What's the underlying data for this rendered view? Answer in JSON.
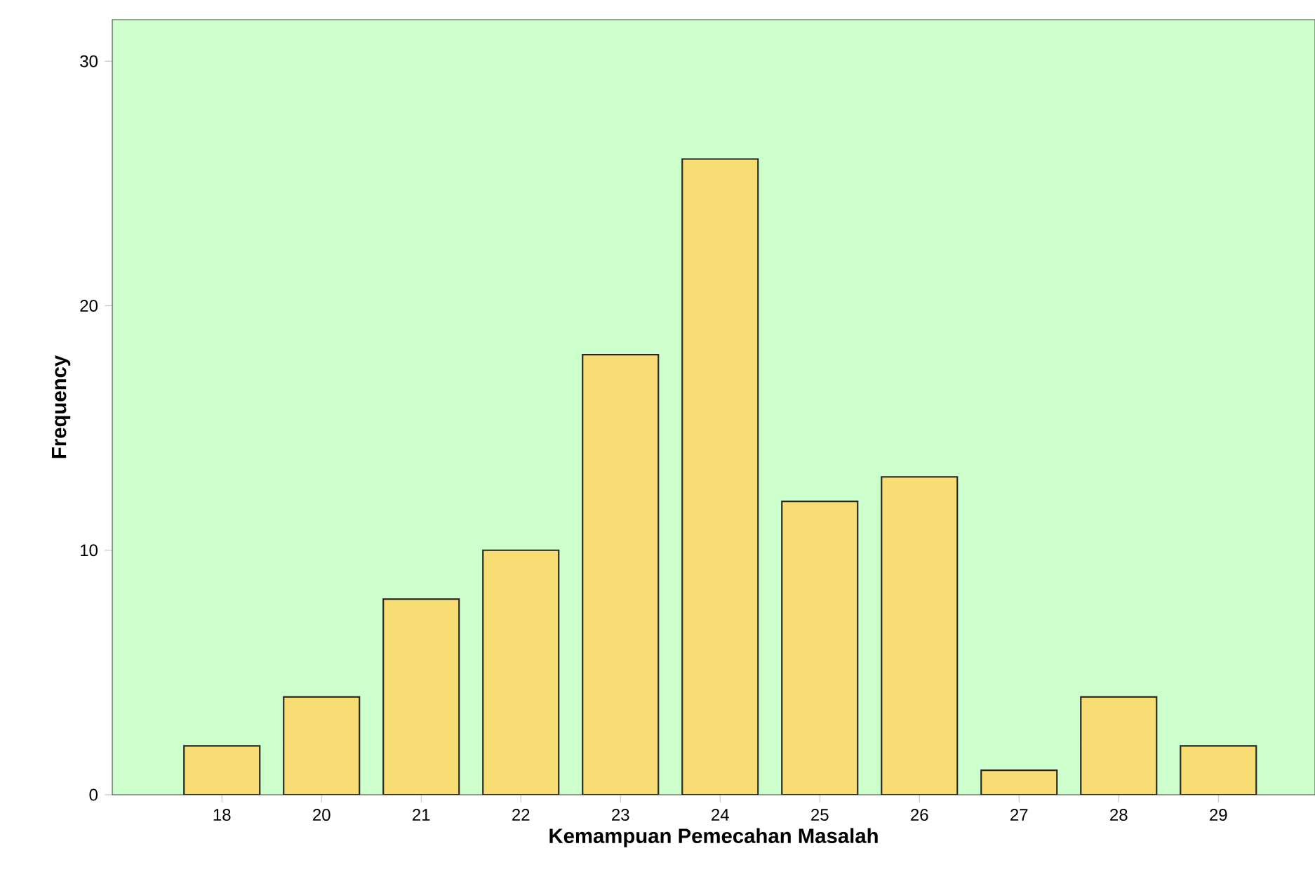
{
  "chart_data": {
    "type": "bar",
    "xlabel": "Kemampuan Pemecahan Masalah",
    "ylabel": "Frequency",
    "categories": [
      "18",
      "20",
      "21",
      "22",
      "23",
      "24",
      "25",
      "26",
      "27",
      "28",
      "29"
    ],
    "values": [
      2,
      4,
      8,
      10,
      18,
      26,
      12,
      13,
      1,
      4,
      2
    ],
    "color": "#f8dc74",
    "ylim": [
      0,
      31.7
    ],
    "yticks": [
      0,
      10,
      20,
      30
    ],
    "grid": false
  }
}
